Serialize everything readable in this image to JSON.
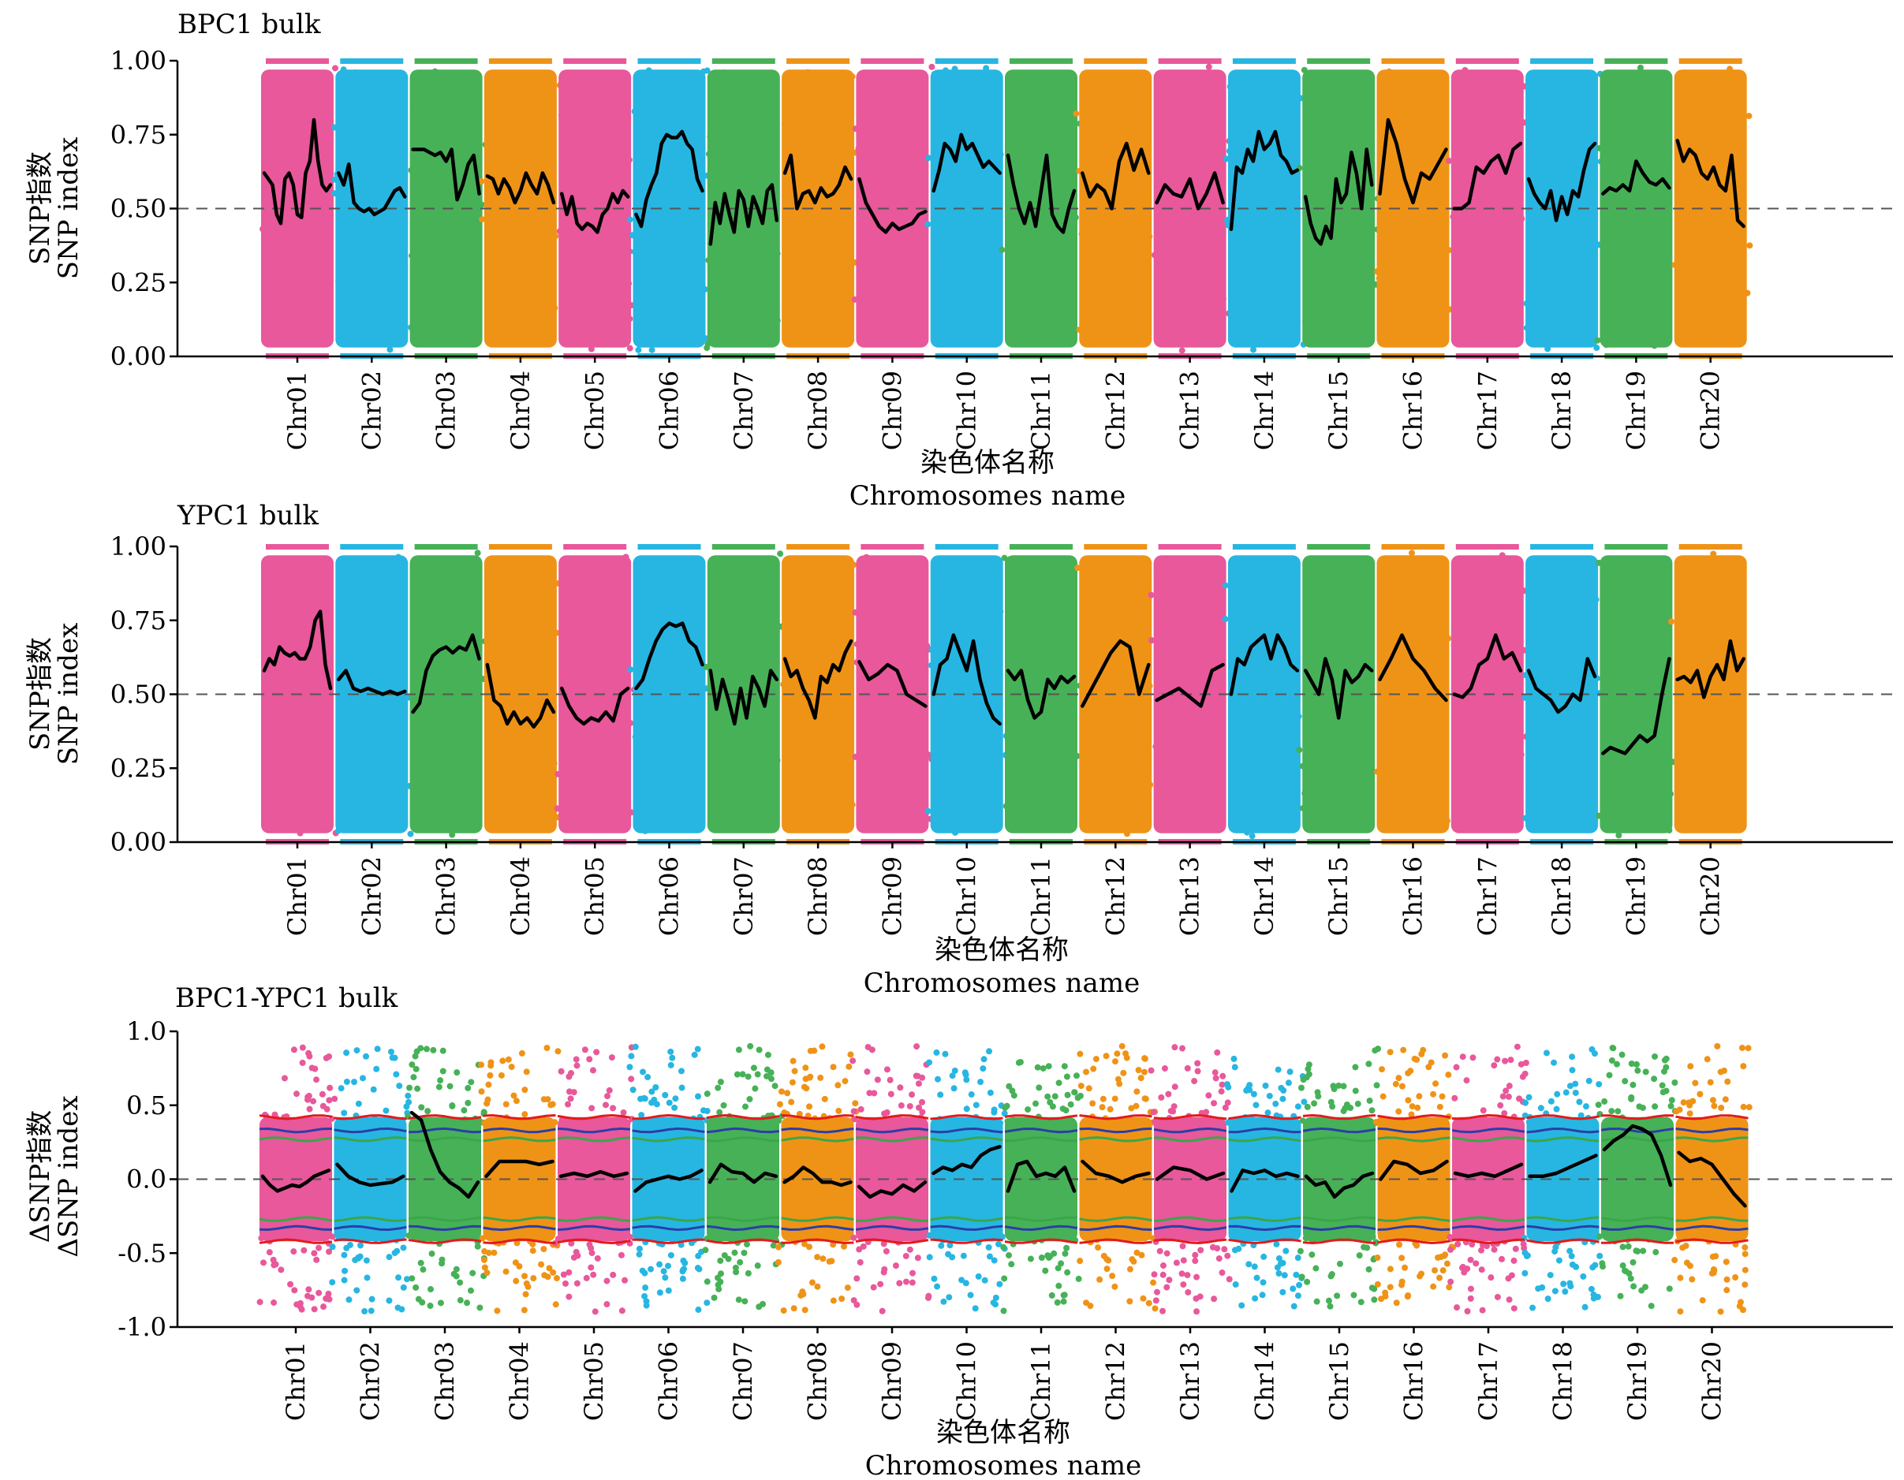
{
  "palette": [
    "#e8589b",
    "#27b6e2",
    "#47b157",
    "#ef9317"
  ],
  "threshold_colors": {
    "p95": "#3aa64a",
    "p99": "#2a3fa8",
    "p999": "#e31a1c"
  },
  "chart_data": [
    {
      "type": "scatter",
      "title": "BPC1 bulk",
      "ylabel_cn": "SNP指数",
      "ylabel_en": "SNP index",
      "xlabel_cn": "染色体名称",
      "xlabel_en": "Chromosomes name",
      "ylim": [
        0,
        1
      ],
      "yticks": [
        "0.00",
        "0.25",
        "0.50",
        "0.75",
        "1.00"
      ],
      "reference_line": 0.5,
      "categories": [
        "Chr01",
        "Chr02",
        "Chr03",
        "Chr04",
        "Chr05",
        "Chr06",
        "Chr07",
        "Chr08",
        "Chr09",
        "Chr10",
        "Chr11",
        "Chr12",
        "Chr13",
        "Chr14",
        "Chr15",
        "Chr16",
        "Chr17",
        "Chr18",
        "Chr19",
        "Chr20"
      ],
      "series": [
        {
          "values": [
            [
              0.62,
              0.6,
              0.58,
              0.48,
              0.45,
              0.6,
              0.62,
              0.58,
              0.48,
              0.47,
              0.62,
              0.66,
              0.8,
              0.66,
              0.58,
              0.56,
              0.58
            ],
            [
              0.62,
              0.58,
              0.65,
              0.52,
              0.5,
              0.49,
              0.5,
              0.48,
              0.49,
              0.5,
              0.53,
              0.56,
              0.57,
              0.54
            ],
            [
              0.7,
              0.7,
              0.7,
              0.69,
              0.68,
              0.69,
              0.66,
              0.7,
              0.53,
              0.58,
              0.65,
              0.68,
              0.55
            ],
            [
              0.61,
              0.6,
              0.55,
              0.6,
              0.57,
              0.52,
              0.56,
              0.62,
              0.58,
              0.55,
              0.62,
              0.58,
              0.52
            ],
            [
              0.55,
              0.48,
              0.54,
              0.45,
              0.43,
              0.45,
              0.44,
              0.42,
              0.48,
              0.5,
              0.55,
              0.52,
              0.56,
              0.54
            ],
            [
              0.48,
              0.44,
              0.53,
              0.58,
              0.62,
              0.72,
              0.75,
              0.74,
              0.74,
              0.76,
              0.72,
              0.7,
              0.6,
              0.56
            ],
            [
              0.38,
              0.52,
              0.45,
              0.55,
              0.48,
              0.42,
              0.56,
              0.53,
              0.44,
              0.54,
              0.5,
              0.45,
              0.56,
              0.58,
              0.46
            ],
            [
              0.62,
              0.68,
              0.5,
              0.55,
              0.56,
              0.52,
              0.57,
              0.54,
              0.55,
              0.58,
              0.64,
              0.6
            ],
            [
              0.6,
              0.52,
              0.48,
              0.44,
              0.42,
              0.45,
              0.43,
              0.44,
              0.45,
              0.48,
              0.49
            ],
            [
              0.56,
              0.63,
              0.72,
              0.7,
              0.66,
              0.75,
              0.7,
              0.72,
              0.68,
              0.64,
              0.66,
              0.64,
              0.62
            ],
            [
              0.68,
              0.58,
              0.5,
              0.45,
              0.52,
              0.44,
              0.56,
              0.68,
              0.48,
              0.44,
              0.42,
              0.5,
              0.56
            ],
            [
              0.62,
              0.54,
              0.58,
              0.56,
              0.5,
              0.66,
              0.72,
              0.63,
              0.7,
              0.62
            ],
            [
              0.52,
              0.58,
              0.55,
              0.54,
              0.6,
              0.5,
              0.55,
              0.62,
              0.52
            ],
            [
              0.43,
              0.64,
              0.62,
              0.7,
              0.66,
              0.76,
              0.7,
              0.72,
              0.76,
              0.68,
              0.66,
              0.62,
              0.63
            ],
            [
              0.54,
              0.45,
              0.4,
              0.38,
              0.44,
              0.4,
              0.6,
              0.52,
              0.55,
              0.69,
              0.62,
              0.5,
              0.7,
              0.58
            ],
            [
              0.55,
              0.8,
              0.72,
              0.6,
              0.52,
              0.62,
              0.6,
              0.65,
              0.7
            ],
            [
              0.5,
              0.5,
              0.52,
              0.64,
              0.62,
              0.66,
              0.68,
              0.62,
              0.7,
              0.72
            ],
            [
              0.6,
              0.55,
              0.52,
              0.5,
              0.56,
              0.46,
              0.54,
              0.48,
              0.56,
              0.54,
              0.63,
              0.7,
              0.72
            ],
            [
              0.55,
              0.57,
              0.56,
              0.58,
              0.56,
              0.66,
              0.62,
              0.59,
              0.58,
              0.6,
              0.57
            ],
            [
              0.73,
              0.66,
              0.7,
              0.68,
              0.62,
              0.6,
              0.64,
              0.58,
              0.56,
              0.68,
              0.46,
              0.44
            ]
          ]
        }
      ]
    },
    {
      "type": "scatter",
      "title": "YPC1 bulk",
      "ylabel_cn": "SNP指数",
      "ylabel_en": "SNP index",
      "xlabel_cn": "染色体名称",
      "xlabel_en": "Chromosomes name",
      "ylim": [
        0,
        1
      ],
      "yticks": [
        "0.00",
        "0.25",
        "0.50",
        "0.75",
        "1.00"
      ],
      "reference_line": 0.5,
      "categories": [
        "Chr01",
        "Chr02",
        "Chr03",
        "Chr04",
        "Chr05",
        "Chr06",
        "Chr07",
        "Chr08",
        "Chr09",
        "Chr10",
        "Chr11",
        "Chr12",
        "Chr13",
        "Chr14",
        "Chr15",
        "Chr16",
        "Chr17",
        "Chr18",
        "Chr19",
        "Chr20"
      ],
      "series": [
        {
          "values": [
            [
              0.58,
              0.62,
              0.6,
              0.66,
              0.64,
              0.63,
              0.64,
              0.62,
              0.62,
              0.66,
              0.75,
              0.78,
              0.6,
              0.52
            ],
            [
              0.55,
              0.58,
              0.52,
              0.51,
              0.52,
              0.51,
              0.5,
              0.51,
              0.5,
              0.51
            ],
            [
              0.44,
              0.47,
              0.58,
              0.63,
              0.65,
              0.66,
              0.64,
              0.66,
              0.65,
              0.7,
              0.62
            ],
            [
              0.6,
              0.48,
              0.46,
              0.4,
              0.44,
              0.4,
              0.42,
              0.39,
              0.42,
              0.48,
              0.44
            ],
            [
              0.52,
              0.46,
              0.42,
              0.4,
              0.42,
              0.41,
              0.44,
              0.41,
              0.5,
              0.52
            ],
            [
              0.52,
              0.55,
              0.62,
              0.68,
              0.72,
              0.74,
              0.73,
              0.74,
              0.68,
              0.66,
              0.6
            ],
            [
              0.58,
              0.45,
              0.55,
              0.48,
              0.4,
              0.52,
              0.42,
              0.56,
              0.52,
              0.46,
              0.58,
              0.55
            ],
            [
              0.62,
              0.56,
              0.58,
              0.52,
              0.48,
              0.42,
              0.56,
              0.54,
              0.6,
              0.58,
              0.64,
              0.68
            ],
            [
              0.61,
              0.55,
              0.57,
              0.6,
              0.58,
              0.5,
              0.48,
              0.46
            ],
            [
              0.5,
              0.6,
              0.62,
              0.7,
              0.64,
              0.58,
              0.68,
              0.55,
              0.47,
              0.42,
              0.4
            ],
            [
              0.58,
              0.55,
              0.58,
              0.48,
              0.42,
              0.44,
              0.55,
              0.52,
              0.56,
              0.54,
              0.56
            ],
            [
              0.46,
              0.52,
              0.58,
              0.64,
              0.68,
              0.66,
              0.5,
              0.6
            ],
            [
              0.48,
              0.5,
              0.52,
              0.49,
              0.46,
              0.58,
              0.6
            ],
            [
              0.5,
              0.62,
              0.6,
              0.66,
              0.68,
              0.7,
              0.62,
              0.7,
              0.66,
              0.6,
              0.58
            ],
            [
              0.58,
              0.54,
              0.5,
              0.62,
              0.55,
              0.42,
              0.58,
              0.54,
              0.56,
              0.6,
              0.58
            ],
            [
              0.55,
              0.62,
              0.7,
              0.62,
              0.58,
              0.52,
              0.48
            ],
            [
              0.5,
              0.49,
              0.52,
              0.6,
              0.62,
              0.7,
              0.62,
              0.64,
              0.58
            ],
            [
              0.58,
              0.52,
              0.5,
              0.48,
              0.44,
              0.46,
              0.5,
              0.48,
              0.62,
              0.56
            ],
            [
              0.3,
              0.32,
              0.31,
              0.3,
              0.33,
              0.36,
              0.34,
              0.36,
              0.5,
              0.62
            ],
            [
              0.55,
              0.56,
              0.54,
              0.58,
              0.49,
              0.56,
              0.6,
              0.55,
              0.68,
              0.58,
              0.62
            ]
          ]
        }
      ]
    },
    {
      "type": "scatter",
      "title": "BPC1-YPC1 bulk",
      "ylabel_cn": "ΔSNP指数",
      "ylabel_en": "ΔSNP index",
      "xlabel_cn": "染色体名称",
      "xlabel_en": "Chromosomes name",
      "ylim": [
        -1,
        1
      ],
      "yticks": [
        "-1.0",
        "-0.5",
        "0.0",
        "0.5",
        "1.0"
      ],
      "reference_line": 0,
      "categories": [
        "Chr01",
        "Chr02",
        "Chr03",
        "Chr04",
        "Chr05",
        "Chr06",
        "Chr07",
        "Chr08",
        "Chr09",
        "Chr10",
        "Chr11",
        "Chr12",
        "Chr13",
        "Chr14",
        "Chr15",
        "Chr16",
        "Chr17",
        "Chr18",
        "Chr19",
        "Chr20"
      ],
      "thresholds": [
        0.27,
        0.33,
        0.42
      ],
      "series": [
        {
          "values": [
            [
              0.02,
              -0.04,
              -0.08,
              -0.06,
              -0.04,
              -0.05,
              -0.02,
              0.02,
              0.04,
              0.06
            ],
            [
              0.1,
              0.02,
              -0.02,
              -0.04,
              -0.03,
              -0.02,
              0.02
            ],
            [
              0.45,
              0.4,
              0.2,
              0.05,
              -0.02,
              -0.06,
              -0.12,
              -0.02
            ],
            [
              0.02,
              0.12,
              0.12,
              0.12,
              0.1,
              0.12
            ],
            [
              0.02,
              0.04,
              0.02,
              0.05,
              0.02,
              0.04
            ],
            [
              -0.08,
              -0.02,
              0.0,
              0.02,
              0.0,
              0.02,
              0.06
            ],
            [
              -0.02,
              0.1,
              0.05,
              0.04,
              -0.02,
              0.04,
              0.02
            ],
            [
              -0.02,
              0.02,
              0.08,
              0.04,
              -0.02,
              -0.02,
              -0.04,
              -0.02
            ],
            [
              -0.05,
              -0.12,
              -0.08,
              -0.1,
              -0.04,
              -0.08,
              -0.02
            ],
            [
              0.04,
              0.08,
              0.06,
              0.1,
              0.08,
              0.16,
              0.2,
              0.22
            ],
            [
              -0.08,
              0.1,
              0.12,
              0.02,
              0.04,
              0.02,
              0.08,
              -0.08
            ],
            [
              0.12,
              0.04,
              0.02,
              -0.02,
              0.02,
              0.04
            ],
            [
              0.0,
              0.08,
              0.06,
              0.0,
              0.04
            ],
            [
              -0.08,
              0.06,
              0.04,
              0.06,
              0.02,
              0.04,
              0.02
            ],
            [
              0.02,
              -0.04,
              -0.02,
              -0.12,
              -0.06,
              -0.04,
              0.02,
              0.04
            ],
            [
              0.0,
              0.12,
              0.1,
              0.04,
              0.06,
              0.12
            ],
            [
              0.04,
              0.02,
              0.04,
              0.02,
              0.06,
              0.1
            ],
            [
              0.02,
              0.02,
              0.04,
              0.08,
              0.12,
              0.16
            ],
            [
              0.2,
              0.26,
              0.3,
              0.36,
              0.34,
              0.3,
              0.16,
              -0.04
            ],
            [
              0.18,
              0.12,
              0.14,
              0.1,
              0.0,
              -0.1,
              -0.18
            ]
          ]
        }
      ]
    }
  ]
}
